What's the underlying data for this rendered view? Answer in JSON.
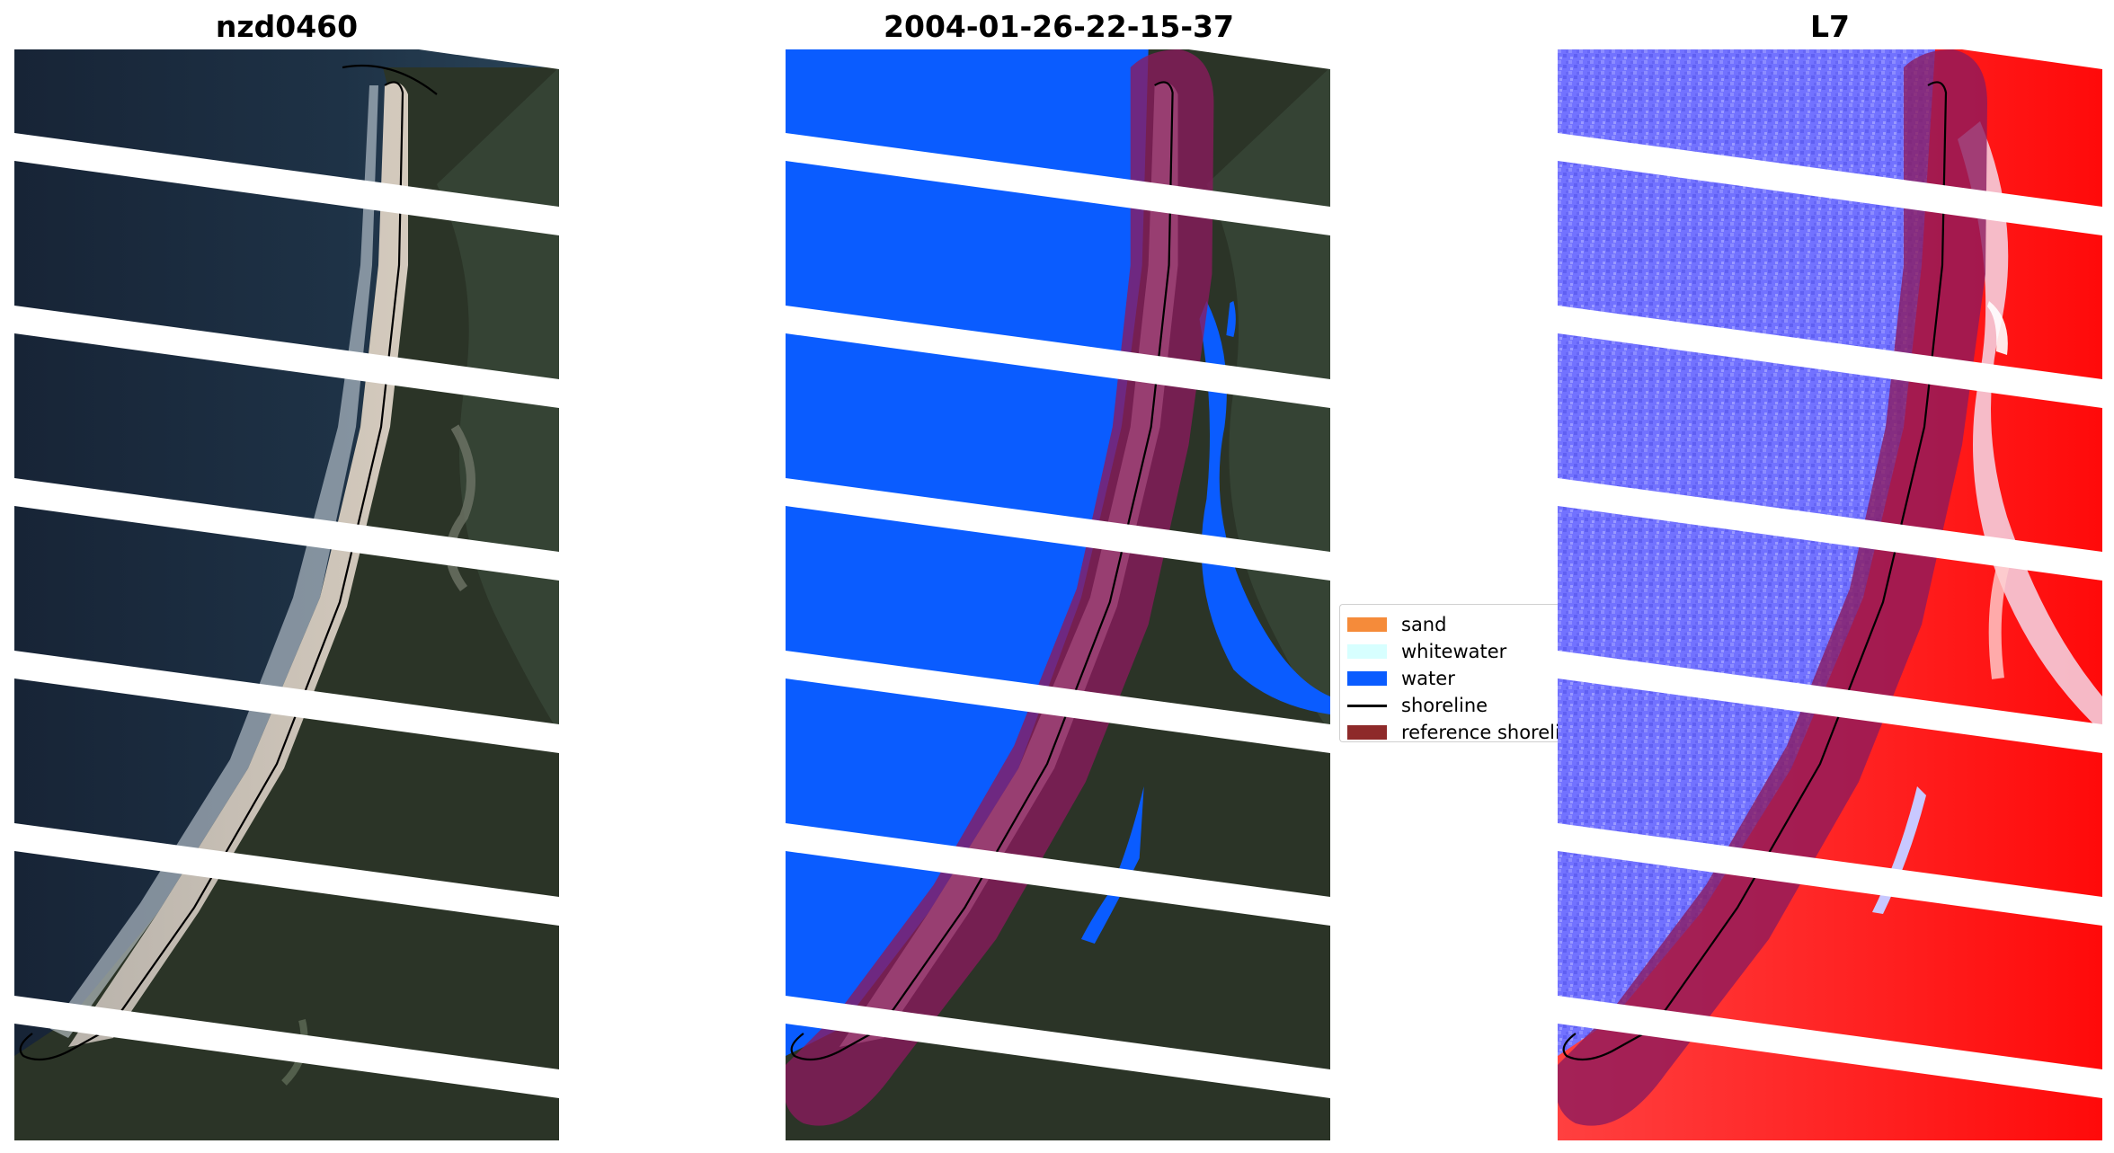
{
  "panels": [
    {
      "title": "nzd0460"
    },
    {
      "title": "2004-01-26-22-15-37"
    },
    {
      "title": "L7"
    }
  ],
  "legend": {
    "items": [
      {
        "label": "sand",
        "color": "#f58b3a",
        "kind": "patch"
      },
      {
        "label": "whitewater",
        "color": "#d7ffff",
        "kind": "patch"
      },
      {
        "label": "water",
        "color": "#0a5cff",
        "kind": "patch"
      },
      {
        "label": "shoreline",
        "color": "#000000",
        "kind": "line"
      },
      {
        "label": "reference shoreline",
        "color": "#8e2a2a",
        "kind": "patch"
      }
    ]
  },
  "colors": {
    "water_class": "#0a5cff",
    "reference_buffer": "#8b1a5e",
    "ocean": "#1c2a3c",
    "beach_sand": "#c9c0b4",
    "vegetation": "#2c3526",
    "index_water": "#6e6eff",
    "index_land": "#ff2020"
  }
}
